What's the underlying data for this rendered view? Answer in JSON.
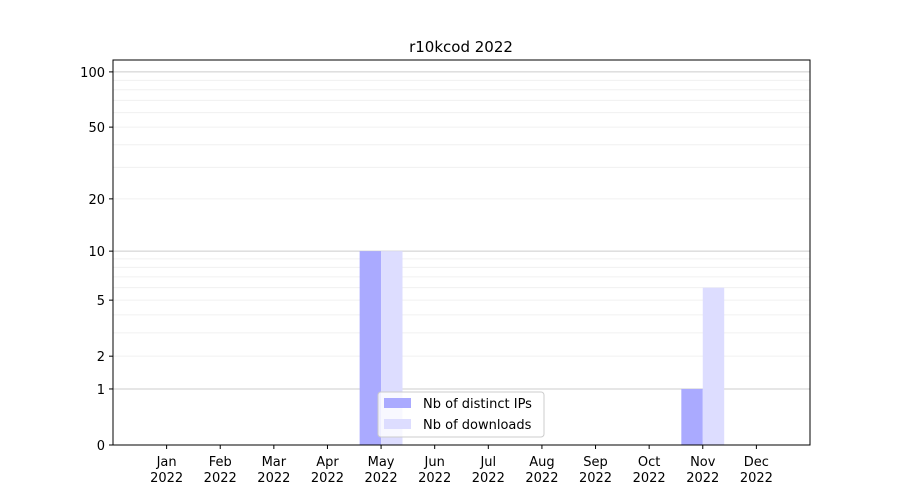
{
  "chart_data": {
    "type": "bar",
    "title": "r10kcod 2022",
    "xlabel": "",
    "ylabel": "",
    "yscale": "symlog (log10(1+y))",
    "ylim": [
      0,
      116
    ],
    "yticks": [
      0,
      1,
      2,
      5,
      10,
      20,
      50,
      100
    ],
    "grid": true,
    "legend_placement": "lower-center",
    "categories": [
      "Jan\n2022",
      "Feb\n2022",
      "Mar\n2022",
      "Apr\n2022",
      "May\n2022",
      "Jun\n2022",
      "Jul\n2022",
      "Aug\n2022",
      "Sep\n2022",
      "Oct\n2022",
      "Nov\n2022",
      "Dec\n2022"
    ],
    "series": [
      {
        "name": "Nb of distinct IPs",
        "color": "#aaaaff",
        "values": [
          0,
          0,
          0,
          0,
          10,
          0,
          0,
          0,
          0,
          0,
          1,
          0
        ]
      },
      {
        "name": "Nb of downloads",
        "color": "#ddddff",
        "values": [
          0,
          0,
          0,
          0,
          10,
          0,
          0,
          0,
          0,
          0,
          6,
          0
        ]
      }
    ]
  }
}
